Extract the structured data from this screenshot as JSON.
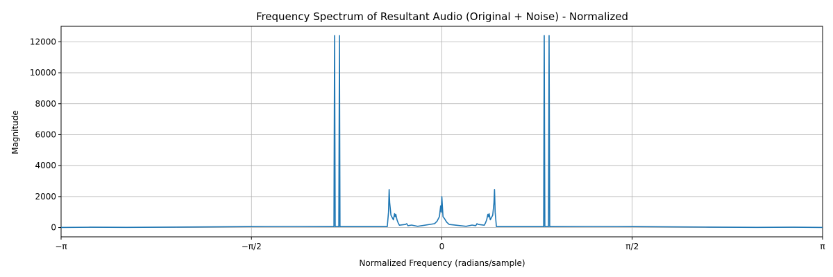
{
  "chart_data": {
    "type": "line",
    "title": "Frequency Spectrum of Resultant Audio (Original + Noise) - Normalized",
    "xlabel": "Normalized Frequency (radians/sample)",
    "ylabel": "Magnitude",
    "xlim": [
      -3.14159,
      3.14159
    ],
    "ylim": [
      -600,
      13000
    ],
    "grid": true,
    "series_color": "#1f77b4",
    "x_ticks": [
      {
        "value": -3.14159,
        "label": "−π"
      },
      {
        "value": -1.5708,
        "label": "−π/2"
      },
      {
        "value": 0,
        "label": "0"
      },
      {
        "value": 1.5708,
        "label": "π/2"
      },
      {
        "value": 3.14159,
        "label": "π"
      }
    ],
    "y_ticks": [
      {
        "value": 0,
        "label": "0"
      },
      {
        "value": 2000,
        "label": "2000"
      },
      {
        "value": 4000,
        "label": "4000"
      },
      {
        "value": 6000,
        "label": "6000"
      },
      {
        "value": 8000,
        "label": "8000"
      },
      {
        "value": 10000,
        "label": "10000"
      },
      {
        "value": 12000,
        "label": "12000"
      }
    ],
    "series": [
      {
        "x": [
          -3.1416,
          -2.9,
          -2.6,
          -2.2,
          -1.6,
          -1.2,
          -0.9,
          -0.89,
          -0.885,
          -0.88,
          -0.87,
          -0.86,
          -0.85,
          -0.845,
          -0.84,
          -0.83,
          -0.6,
          -0.45,
          -0.44,
          -0.435,
          -0.43,
          -0.42,
          -0.4,
          -0.39,
          -0.385,
          -0.38,
          -0.37,
          -0.36,
          -0.35,
          -0.3,
          -0.29,
          -0.28,
          -0.25,
          -0.2,
          -0.06,
          -0.04,
          -0.02,
          -0.01,
          -0.005,
          0,
          0.005,
          0.01,
          0.02,
          0.04,
          0.06,
          0.2,
          0.25,
          0.28,
          0.29,
          0.3,
          0.35,
          0.36,
          0.37,
          0.38,
          0.385,
          0.39,
          0.4,
          0.42,
          0.43,
          0.435,
          0.44,
          0.45,
          0.6,
          0.83,
          0.84,
          0.845,
          0.85,
          0.86,
          0.87,
          0.88,
          0.885,
          0.89,
          0.9,
          1.2,
          1.6,
          2.2,
          2.6,
          2.9,
          3.1416
        ],
        "y": [
          10,
          20,
          15,
          30,
          60,
          70,
          60,
          60,
          12400,
          60,
          60,
          60,
          60,
          12400,
          60,
          60,
          60,
          60,
          1000,
          2450,
          1600,
          800,
          500,
          900,
          700,
          850,
          500,
          300,
          150,
          200,
          250,
          120,
          160,
          80,
          250,
          400,
          700,
          1400,
          1000,
          2000,
          1300,
          700,
          600,
          350,
          200,
          80,
          160,
          120,
          250,
          200,
          150,
          300,
          500,
          850,
          700,
          900,
          500,
          800,
          1600,
          2450,
          1000,
          60,
          60,
          60,
          60,
          12400,
          60,
          60,
          60,
          60,
          12400,
          60,
          60,
          70,
          60,
          30,
          15,
          20,
          10
        ]
      }
    ]
  }
}
